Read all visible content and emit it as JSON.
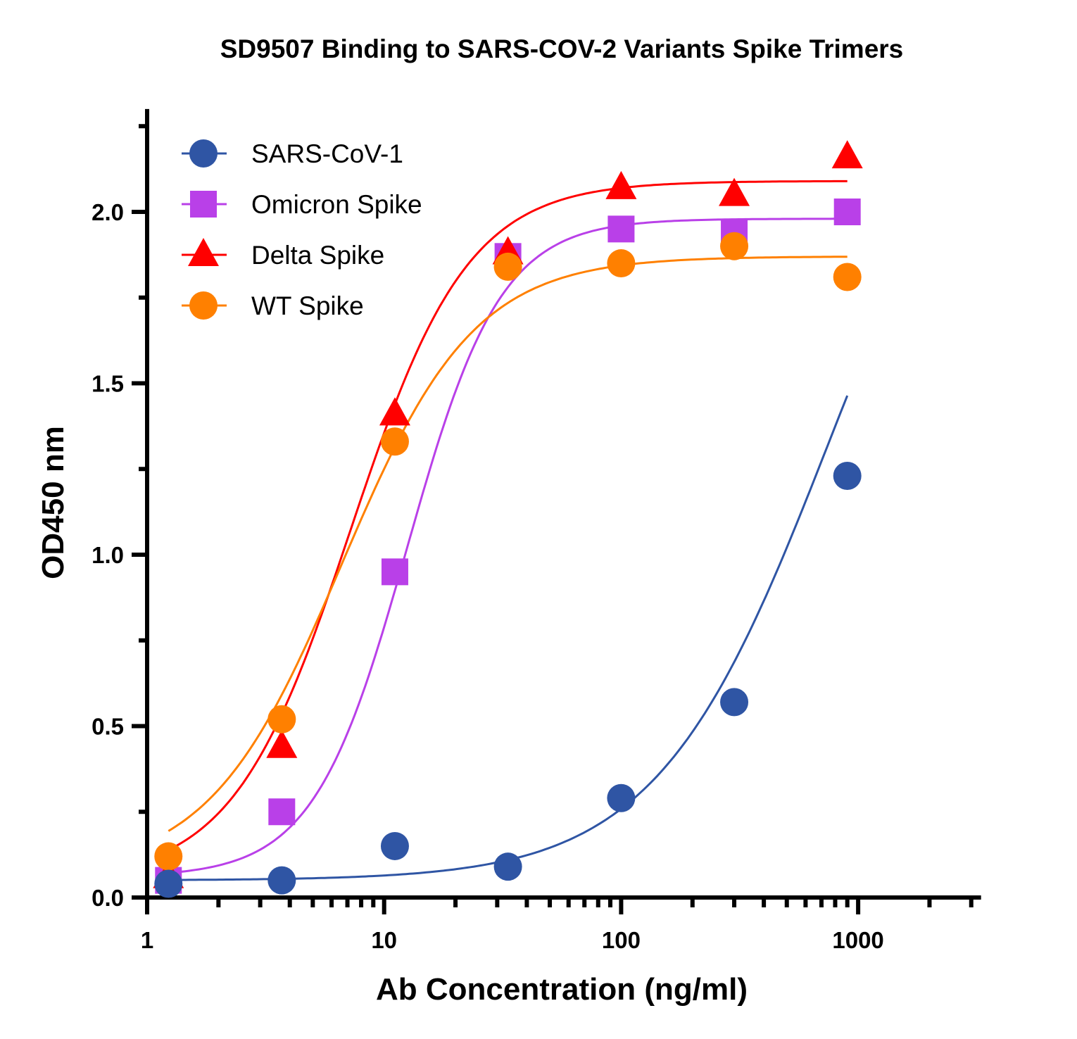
{
  "chart_data": {
    "type": "scatter",
    "title": "SD9507 Binding to SARS-COV-2 Variants Spike Trimers",
    "xlabel": "Ab Concentration (ng/ml)",
    "ylabel": "OD450 nm",
    "x_scale": "log",
    "xlim": [
      1,
      3300
    ],
    "ylim": [
      0,
      2.3
    ],
    "x_ticks": [
      "1",
      "10",
      "100",
      "1000"
    ],
    "y_ticks": [
      "0.0",
      "0.5",
      "1.0",
      "1.5",
      "2.0"
    ],
    "grid": false,
    "legend_position": "top-left",
    "x": [
      1.23,
      3.7,
      11.1,
      33.3,
      100,
      300,
      900
    ],
    "series": [
      {
        "name": "SARS-CoV-1",
        "marker": "circle",
        "color": "#2F55A4",
        "values": [
          0.04,
          0.05,
          0.15,
          0.09,
          0.29,
          0.57,
          1.23
        ]
      },
      {
        "name": "Omicron Spike",
        "marker": "square",
        "color": "#B940E8",
        "values": [
          0.05,
          0.25,
          0.95,
          1.87,
          1.95,
          1.94,
          2.0
        ]
      },
      {
        "name": "Delta Spike",
        "marker": "triangle",
        "color": "#FF0000",
        "values": [
          0.06,
          0.44,
          1.41,
          1.88,
          2.07,
          2.05,
          2.16
        ]
      },
      {
        "name": "WT Spike",
        "marker": "circle",
        "color": "#FF8000",
        "values": [
          0.12,
          0.52,
          1.33,
          1.84,
          1.85,
          1.9,
          1.81
        ]
      }
    ]
  }
}
